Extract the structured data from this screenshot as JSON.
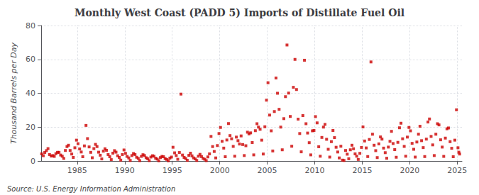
{
  "chart_data": {
    "type": "scatter",
    "title": "Monthly West Coast (PADD 5) Imports of Distillate Fuel Oil",
    "ylabel": "Thousand Barrels per Day",
    "annotations": [
      "Source: U.S. Energy Information Administration"
    ],
    "color": "#cc0000",
    "marker": "square",
    "grid": true,
    "xlim": [
      1981.2,
      2025.5
    ],
    "xticks": [
      1985,
      1990,
      1995,
      2000,
      2005,
      2010,
      2015,
      2020,
      2025
    ],
    "ylim": [
      0,
      80
    ],
    "yticks": [
      0,
      20,
      40,
      60,
      80
    ],
    "x": [
      1981.25,
      1981.42,
      1981.58,
      1981.75,
      1981.92,
      1982.08,
      1982.25,
      1982.42,
      1982.58,
      1982.75,
      1982.92,
      1983.08,
      1983.25,
      1983.42,
      1983.58,
      1983.75,
      1983.92,
      1984.08,
      1984.25,
      1984.42,
      1984.58,
      1984.75,
      1984.92,
      1985.08,
      1985.25,
      1985.42,
      1985.58,
      1985.75,
      1985.92,
      1986.08,
      1986.25,
      1986.42,
      1986.58,
      1986.75,
      1986.92,
      1987.08,
      1987.25,
      1987.42,
      1987.58,
      1987.75,
      1987.92,
      1988.08,
      1988.25,
      1988.42,
      1988.58,
      1988.75,
      1988.92,
      1989.08,
      1989.25,
      1989.42,
      1989.58,
      1989.75,
      1989.92,
      1990.08,
      1990.25,
      1990.42,
      1990.58,
      1990.75,
      1990.92,
      1991.08,
      1991.25,
      1991.42,
      1991.58,
      1991.75,
      1991.92,
      1992.08,
      1992.25,
      1992.42,
      1992.58,
      1992.75,
      1992.92,
      1993.08,
      1993.25,
      1993.42,
      1993.58,
      1993.75,
      1993.92,
      1994.08,
      1994.25,
      1994.42,
      1994.58,
      1994.75,
      1994.92,
      1995.08,
      1995.25,
      1995.42,
      1995.58,
      1995.75,
      1995.92,
      1996.08,
      1996.25,
      1996.42,
      1996.58,
      1996.75,
      1996.92,
      1997.08,
      1997.25,
      1997.42,
      1997.58,
      1997.75,
      1997.92,
      1998.08,
      1998.25,
      1998.42,
      1998.58,
      1998.75,
      1998.92,
      1999.08,
      1999.25,
      1999.42,
      1999.58,
      1999.75,
      1999.92,
      2000.08,
      2000.25,
      2000.42,
      2000.58,
      2000.75,
      2000.92,
      2001.08,
      2001.25,
      2001.42,
      2001.58,
      2001.75,
      2001.92,
      2002.08,
      2002.25,
      2002.42,
      2002.58,
      2002.75,
      2002.92,
      2003.08,
      2003.25,
      2003.42,
      2003.58,
      2003.75,
      2003.92,
      2004.08,
      2004.25,
      2004.42,
      2004.58,
      2004.75,
      2004.92,
      2005.08,
      2005.25,
      2005.42,
      2005.58,
      2005.75,
      2005.92,
      2006.08,
      2006.25,
      2006.42,
      2006.58,
      2006.75,
      2006.92,
      2007.08,
      2007.25,
      2007.42,
      2007.58,
      2007.75,
      2007.92,
      2008.08,
      2008.25,
      2008.42,
      2008.58,
      2008.75,
      2008.92,
      2009.08,
      2009.25,
      2009.42,
      2009.58,
      2009.75,
      2009.92,
      2010.08,
      2010.25,
      2010.42,
      2010.58,
      2010.75,
      2010.92,
      2011.08,
      2011.25,
      2011.42,
      2011.58,
      2011.75,
      2011.92,
      2012.08,
      2012.25,
      2012.42,
      2012.58,
      2012.75,
      2012.92,
      2013.08,
      2013.25,
      2013.42,
      2013.58,
      2013.75,
      2013.92,
      2014.08,
      2014.25,
      2014.42,
      2014.58,
      2014.75,
      2014.92,
      2015.08,
      2015.25,
      2015.42,
      2015.58,
      2015.75,
      2015.92,
      2016.08,
      2016.25,
      2016.42,
      2016.58,
      2016.75,
      2016.92,
      2017.08,
      2017.25,
      2017.42,
      2017.58,
      2017.75,
      2017.92,
      2018.08,
      2018.25,
      2018.42,
      2018.58,
      2018.75,
      2018.92,
      2019.08,
      2019.25,
      2019.42,
      2019.58,
      2019.75,
      2019.92,
      2020.08,
      2020.25,
      2020.42,
      2020.58,
      2020.75,
      2020.92,
      2021.08,
      2021.25,
      2021.42,
      2021.58,
      2021.75,
      2021.92,
      2022.08,
      2022.25,
      2022.42,
      2022.58,
      2022.75,
      2022.92,
      2023.08,
      2023.25,
      2023.42,
      2023.58,
      2023.75,
      2023.92,
      2024.08,
      2024.25,
      2024.42,
      2024.58,
      2024.75,
      2024.92,
      2025.08,
      2025.17,
      2025.25
    ],
    "values": [
      4.2,
      3.1,
      5.0,
      6.1,
      7.3,
      3.8,
      2.9,
      3.2,
      2.7,
      4.3,
      5.1,
      5.1,
      3.5,
      2.8,
      1.5,
      6.2,
      8.5,
      9.3,
      6.2,
      4.1,
      2.1,
      7.8,
      12.3,
      10.2,
      7.1,
      5.3,
      2.5,
      8.9,
      21.0,
      13.2,
      8.3,
      5.1,
      1.9,
      7.3,
      9.8,
      8.5,
      5.2,
      3.4,
      1.2,
      5.8,
      7.2,
      6.3,
      3.8,
      2.5,
      0.8,
      4.6,
      6.1,
      5.2,
      3.1,
      2.1,
      0.5,
      3.8,
      6.5,
      4.5,
      2.7,
      1.8,
      0.3,
      3.2,
      4.4,
      3.8,
      2.2,
      1.5,
      0.2,
      2.7,
      3.7,
      3.2,
      1.9,
      1.3,
      0.2,
      2.3,
      3.1,
      2.8,
      1.6,
      1.1,
      0.1,
      2.0,
      2.7,
      2.5,
      1.4,
      0.9,
      0.1,
      1.7,
      2.3,
      8.1,
      4.8,
      3.2,
      1.0,
      5.0,
      39.5,
      3.5,
      2.1,
      1.4,
      0.4,
      3.3,
      4.6,
      3.0,
      1.8,
      1.2,
      0.3,
      2.8,
      3.9,
      2.6,
      1.5,
      1.0,
      0.2,
      2.4,
      4.2,
      14.5,
      8.5,
      5.6,
      1.8,
      9.1,
      16.2,
      19.8,
      11.6,
      7.6,
      2.5,
      12.4,
      22.1,
      15.0,
      13.1,
      8.6,
      2.8,
      14.1,
      12.0,
      10.0,
      14.8,
      9.7,
      3.2,
      9.0,
      17.0,
      16.0,
      16.6,
      10.9,
      3.6,
      17.9,
      22.0,
      20.0,
      18.7,
      12.3,
      4.1,
      20.2,
      35.9,
      46.2,
      27.1,
      17.8,
      5.9,
      29.2,
      49.0,
      40.0,
      30.5,
      20.0,
      6.6,
      25.0,
      38.0,
      68.5,
      40.1,
      26.3,
      8.7,
      43.5,
      60.0,
      42.2,
      24.7,
      16.2,
      5.4,
      26.8,
      59.5,
      22.0,
      16.5,
      10.8,
      3.6,
      17.8,
      18.0,
      26.2,
      22.5,
      8.4,
      2.8,
      13.9,
      20.0,
      21.6,
      12.8,
      6.9,
      2.3,
      11.4,
      18.0,
      13.8,
      8.1,
      5.3,
      1.8,
      8.7,
      0.5,
      0.3,
      6.2,
      4.0,
      1.3,
      6.6,
      9.3,
      7.2,
      4.2,
      2.8,
      0.9,
      4.5,
      8.0,
      20.1,
      11.8,
      7.7,
      2.6,
      12.7,
      58.5,
      15.8,
      9.3,
      6.1,
      2.0,
      10.1,
      14.2,
      12.9,
      7.6,
      4.9,
      1.6,
      8.2,
      11.6,
      17.5,
      10.3,
      6.7,
      2.2,
      11.0,
      19.6,
      22.3,
      13.1,
      8.6,
      2.8,
      14.1,
      19.8,
      17.8,
      10.4,
      6.9,
      2.3,
      11.2,
      15.8,
      20.5,
      12.0,
      7.9,
      2.6,
      12.9,
      23.0,
      24.8,
      14.5,
      9.5,
      3.2,
      15.8,
      22.0,
      21.3,
      12.5,
      8.2,
      2.7,
      13.5,
      19.0,
      19.5,
      11.4,
      7.5,
      2.5,
      12.3,
      30.2,
      7.8,
      5.2,
      4.1
    ]
  }
}
